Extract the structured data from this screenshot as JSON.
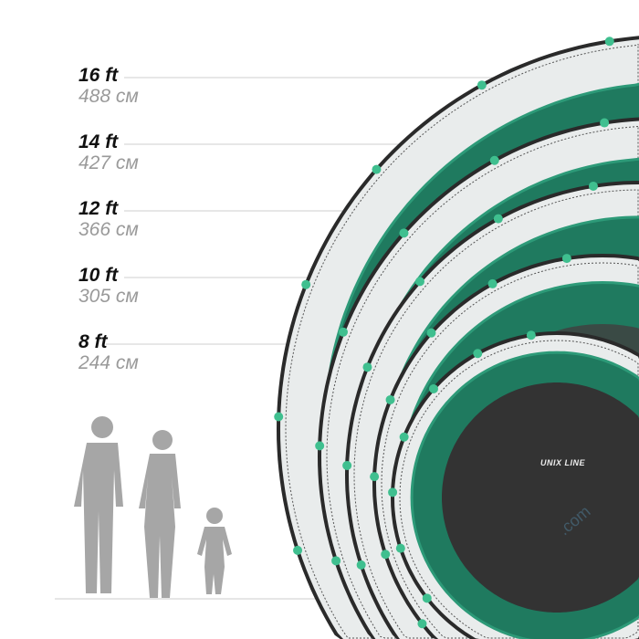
{
  "sizes": [
    {
      "ft": "16 ft",
      "cm": "488 см"
    },
    {
      "ft": "14 ft",
      "cm": "427 см"
    },
    {
      "ft": "12 ft",
      "cm": "366 см"
    },
    {
      "ft": "10 ft",
      "cm": "305 см"
    },
    {
      "ft": "8 ft",
      "cm": "244 см"
    }
  ],
  "logo": "UNIX LINE",
  "watermark": ".com",
  "colors": {
    "pad": "#1f7a5f",
    "pad_light": "#2d9a78",
    "mat": "#333333",
    "net": "#2a2a2a",
    "silhouette": "#a6a6a6"
  }
}
